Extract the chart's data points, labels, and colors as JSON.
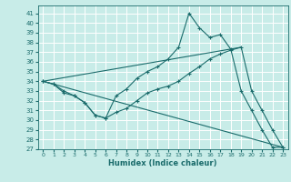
{
  "xlabel": "Humidex (Indice chaleur)",
  "bg_color": "#c8ece8",
  "grid_color": "#ffffff",
  "line_color": "#1a6b6b",
  "xlim": [
    -0.5,
    23.5
  ],
  "ylim": [
    27,
    41.8
  ],
  "yticks": [
    27,
    28,
    29,
    30,
    31,
    32,
    33,
    34,
    35,
    36,
    37,
    38,
    39,
    40,
    41
  ],
  "xticks": [
    0,
    1,
    2,
    3,
    4,
    5,
    6,
    7,
    8,
    9,
    10,
    11,
    12,
    13,
    14,
    15,
    16,
    17,
    18,
    19,
    20,
    21,
    22,
    23
  ],
  "line1": {
    "x": [
      0,
      1,
      2,
      3,
      4,
      5,
      6,
      7,
      8,
      9,
      10,
      11,
      12,
      13,
      14,
      15,
      16,
      17,
      18,
      19,
      20,
      21,
      22,
      23
    ],
    "y": [
      34,
      33.7,
      33.0,
      32.5,
      31.8,
      30.5,
      30.2,
      32.5,
      33.2,
      34.3,
      35.0,
      35.5,
      36.3,
      37.5,
      41.0,
      39.5,
      38.5,
      38.8,
      37.3,
      33.0,
      31.0,
      29.0,
      27.2,
      27.2
    ]
  },
  "line2": {
    "x": [
      0,
      1,
      2,
      3,
      4,
      5,
      6,
      7,
      8,
      9,
      10,
      11,
      12,
      13,
      14,
      15,
      16,
      17,
      18,
      19,
      20,
      21,
      22,
      23
    ],
    "y": [
      34,
      33.7,
      32.8,
      32.5,
      31.8,
      30.5,
      30.2,
      30.8,
      31.2,
      32.0,
      32.8,
      33.2,
      33.5,
      34.0,
      34.8,
      35.5,
      36.3,
      36.8,
      37.2,
      37.5,
      33.0,
      31.0,
      29.0,
      27.2
    ]
  },
  "line3_diag_down": {
    "x": [
      0,
      23
    ],
    "y": [
      34,
      27.2
    ]
  },
  "line3_diag_up": {
    "x": [
      0,
      19
    ],
    "y": [
      34,
      37.5
    ]
  }
}
